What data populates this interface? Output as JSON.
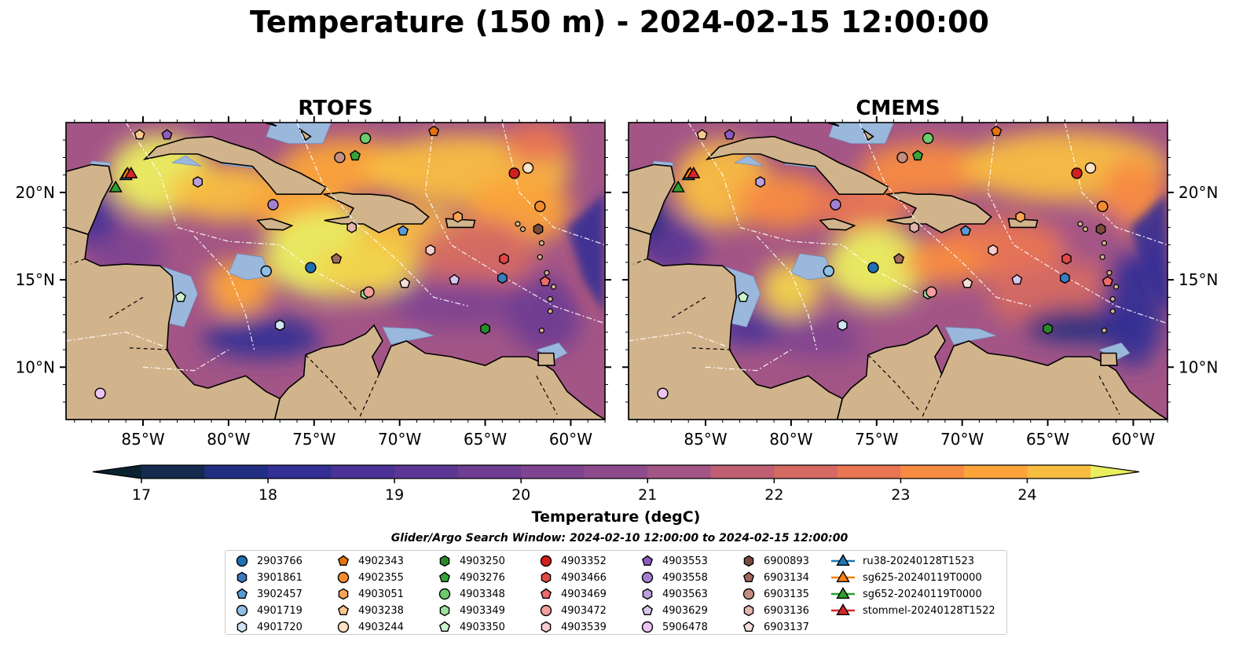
{
  "title": "Temperature (150 m) - 2024-02-15 12:00:00",
  "panels": [
    {
      "title": "RTOFS"
    },
    {
      "title": "CMEMS"
    }
  ],
  "map": {
    "lon_range": [
      -89.5,
      -58
    ],
    "lat_range": [
      7,
      24
    ],
    "lon_ticks": [
      "85°W",
      "80°W",
      "75°W",
      "70°W",
      "65°W",
      "60°W"
    ],
    "lat_ticks": [
      "20°N",
      "15°N",
      "10°N"
    ],
    "colors": {
      "land": "#d2b48c",
      "shelf": "#9ab7dc",
      "contour": "#ffffff"
    }
  },
  "colorbar": {
    "label": "Temperature (degC)",
    "ticks": [
      "17",
      "18",
      "19",
      "20",
      "21",
      "22",
      "23",
      "24"
    ],
    "colors": [
      "#0b2230",
      "#152a4e",
      "#212f82",
      "#342f95",
      "#4a3297",
      "#5d3695",
      "#6f3d92",
      "#7f4490",
      "#8e4b8c",
      "#a35586",
      "#c05f74",
      "#d56a63",
      "#e97553",
      "#f88b42",
      "#fca43a",
      "#f8bd40",
      "#f1d34d",
      "#ebef5f"
    ]
  },
  "legend": {
    "title": "Glider/Argo Search Window: 2024-02-10 12:00:00 to 2024-02-15 12:00:00",
    "columns": [
      [
        {
          "label": "2903766",
          "marker": "circle",
          "color": "#1f6fb4"
        },
        {
          "label": "3901861",
          "marker": "hexagon",
          "color": "#3b7bbf"
        },
        {
          "label": "3902457",
          "marker": "pentagon",
          "color": "#5b9bd5"
        },
        {
          "label": "4901719",
          "marker": "circle",
          "color": "#8fbfe6"
        },
        {
          "label": "4901720",
          "marker": "hexagon",
          "color": "#d0e4f5"
        }
      ],
      [
        {
          "label": "4902343",
          "marker": "pentagon",
          "color": "#e8720c"
        },
        {
          "label": "4902355",
          "marker": "circle",
          "color": "#f58b2f"
        },
        {
          "label": "4903051",
          "marker": "hexagon",
          "color": "#f9a553"
        },
        {
          "label": "4903238",
          "marker": "pentagon",
          "color": "#fcc88e"
        },
        {
          "label": "4903244",
          "marker": "circle",
          "color": "#fde2c4"
        }
      ],
      [
        {
          "label": "4903250",
          "marker": "hexagon",
          "color": "#2a8a2a"
        },
        {
          "label": "4903276",
          "marker": "pentagon",
          "color": "#36a336"
        },
        {
          "label": "4903348",
          "marker": "circle",
          "color": "#6ccb6c"
        },
        {
          "label": "4903349",
          "marker": "hexagon",
          "color": "#9ee09e"
        },
        {
          "label": "4903350",
          "marker": "pentagon",
          "color": "#cdf2cd"
        }
      ],
      [
        {
          "label": "4903352",
          "marker": "circle",
          "color": "#d11f1f"
        },
        {
          "label": "4903466",
          "marker": "hexagon",
          "color": "#e04848"
        },
        {
          "label": "4903469",
          "marker": "pentagon",
          "color": "#ec6b6b"
        },
        {
          "label": "4903472",
          "marker": "circle",
          "color": "#f39d9d"
        },
        {
          "label": "4903539",
          "marker": "hexagon",
          "color": "#f9cccc"
        }
      ],
      [
        {
          "label": "4903553",
          "marker": "pentagon",
          "color": "#8c5cc0"
        },
        {
          "label": "4903558",
          "marker": "circle",
          "color": "#a47fd0"
        },
        {
          "label": "4903563",
          "marker": "hexagon",
          "color": "#bca0dd"
        },
        {
          "label": "4903629",
          "marker": "pentagon",
          "color": "#d6c5ec"
        },
        {
          "label": "5906478",
          "marker": "circle",
          "color": "#ecc4f2"
        }
      ],
      [
        {
          "label": "6900893",
          "marker": "hexagon",
          "color": "#7a4a3a"
        },
        {
          "label": "6903134",
          "marker": "pentagon",
          "color": "#a0695a"
        },
        {
          "label": "6903135",
          "marker": "circle",
          "color": "#c48f83"
        },
        {
          "label": "6903136",
          "marker": "hexagon",
          "color": "#e2b6ac"
        },
        {
          "label": "6903137",
          "marker": "pentagon",
          "color": "#f6ddd6"
        }
      ],
      [
        {
          "label": "ru38-20240128T1523",
          "marker": "triangle-line",
          "color": "#1f77b4"
        },
        {
          "label": "sg625-20240119T0000",
          "marker": "triangle-line",
          "color": "#ff7f0e"
        },
        {
          "label": "sg652-20240119T0000",
          "marker": "triangle-line",
          "color": "#2ca02c"
        },
        {
          "label": "stommel-20240128T1522",
          "marker": "triangle-line",
          "color": "#d62728"
        }
      ]
    ]
  },
  "floats": [
    {
      "id": "2903766",
      "lon": -75.2,
      "lat": 15.7
    },
    {
      "id": "3901861",
      "lon": -64.0,
      "lat": 15.1
    },
    {
      "id": "3902457",
      "lon": -69.8,
      "lat": 17.8
    },
    {
      "id": "4901719",
      "lon": -77.8,
      "lat": 15.5
    },
    {
      "id": "4901720",
      "lon": -77.0,
      "lat": 12.4
    },
    {
      "id": "4902343",
      "lon": -68.0,
      "lat": 23.5
    },
    {
      "id": "4902355",
      "lon": -61.8,
      "lat": 19.2
    },
    {
      "id": "4903051",
      "lon": -66.6,
      "lat": 18.6
    },
    {
      "id": "4903238",
      "lon": -85.2,
      "lat": 23.3
    },
    {
      "id": "4903244",
      "lon": -62.5,
      "lat": 21.4
    },
    {
      "id": "4903250",
      "lon": -65.0,
      "lat": 12.2
    },
    {
      "id": "4903276",
      "lon": -72.6,
      "lat": 22.1
    },
    {
      "id": "4903348",
      "lon": -72.0,
      "lat": 23.1
    },
    {
      "id": "4903349",
      "lon": -72.0,
      "lat": 14.2
    },
    {
      "id": "4903350",
      "lon": -82.8,
      "lat": 14.0
    },
    {
      "id": "4903352",
      "lon": -63.3,
      "lat": 21.1
    },
    {
      "id": "4903466",
      "lon": -63.9,
      "lat": 16.2
    },
    {
      "id": "4903469",
      "lon": -61.5,
      "lat": 14.9
    },
    {
      "id": "4903472",
      "lon": -71.8,
      "lat": 14.3
    },
    {
      "id": "4903539",
      "lon": -68.2,
      "lat": 16.7
    },
    {
      "id": "4903553",
      "lon": -83.6,
      "lat": 23.3
    },
    {
      "id": "4903558",
      "lon": -77.4,
      "lat": 19.3
    },
    {
      "id": "4903563",
      "lon": -81.8,
      "lat": 20.6
    },
    {
      "id": "4903629",
      "lon": -66.8,
      "lat": 15.0
    },
    {
      "id": "5906478",
      "lon": -87.5,
      "lat": 8.5
    },
    {
      "id": "6900893",
      "lon": -61.9,
      "lat": 17.9
    },
    {
      "id": "6903134",
      "lon": -73.7,
      "lat": 16.2
    },
    {
      "id": "6903135",
      "lon": -73.5,
      "lat": 22.0
    },
    {
      "id": "6903136",
      "lon": -72.8,
      "lat": 18.0
    },
    {
      "id": "6903137",
      "lon": -69.7,
      "lat": 14.8
    }
  ],
  "gliders": [
    {
      "id": "ru38-20240128T1523",
      "lon": -86.0,
      "lat": 21.0
    },
    {
      "id": "sg625-20240119T0000",
      "lon": -85.9,
      "lat": 21.1
    },
    {
      "id": "sg652-20240119T0000",
      "lon": -86.6,
      "lat": 20.3
    },
    {
      "id": "stommel-20240128T1522",
      "lon": -85.7,
      "lat": 21.1
    }
  ]
}
